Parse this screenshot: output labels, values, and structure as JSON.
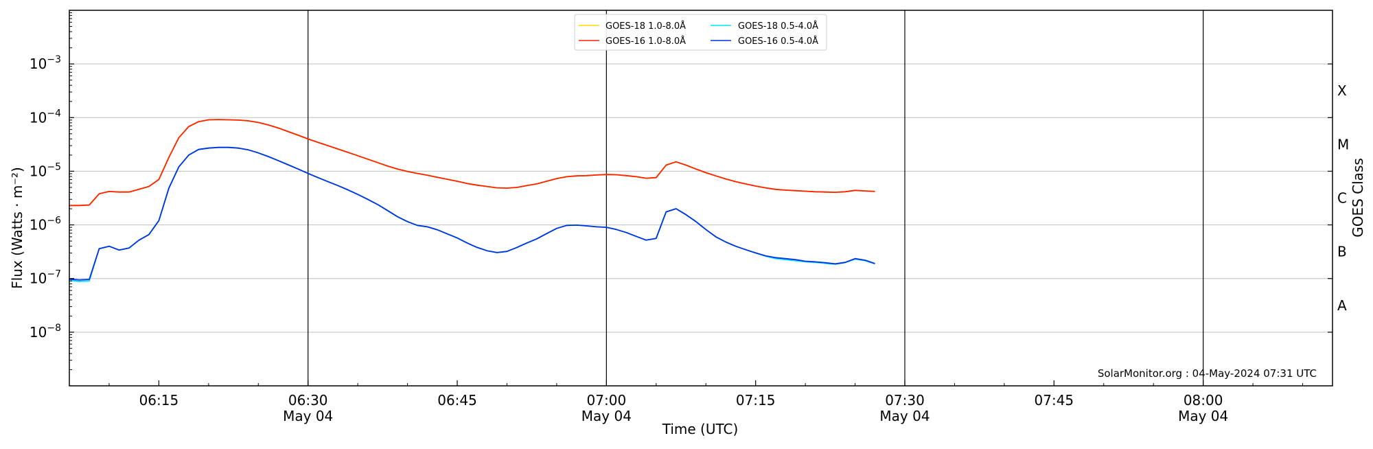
{
  "chart_data": {
    "type": "line",
    "title": "",
    "xlabel": "Time (UTC)",
    "ylabel": "Flux (Watts · m⁻²)",
    "right_label": "GOES Class",
    "credit": "SolarMonitor.org : 04-May-2024 07:31 UTC",
    "y_scale": "log",
    "ylim_exponents": [
      -9,
      -2
    ],
    "y_ticks": [
      {
        "exp": -8,
        "base": "10",
        "sup": "−8"
      },
      {
        "exp": -7,
        "base": "10",
        "sup": "−7"
      },
      {
        "exp": -6,
        "base": "10",
        "sup": "−6"
      },
      {
        "exp": -5,
        "base": "10",
        "sup": "−5"
      },
      {
        "exp": -4,
        "base": "10",
        "sup": "−4"
      },
      {
        "exp": -3,
        "base": "10",
        "sup": "−3"
      }
    ],
    "xlim": [
      "06:06",
      "08:13"
    ],
    "x_ticks": [
      {
        "time": "06:15",
        "date": ""
      },
      {
        "time": "06:30",
        "date": "May 04"
      },
      {
        "time": "06:45",
        "date": ""
      },
      {
        "time": "07:00",
        "date": "May 04"
      },
      {
        "time": "07:15",
        "date": ""
      },
      {
        "time": "07:30",
        "date": "May 04"
      },
      {
        "time": "07:45",
        "date": ""
      },
      {
        "time": "08:00",
        "date": "May 04"
      }
    ],
    "vertical_lines": [
      "06:30",
      "07:00",
      "07:30",
      "08:00"
    ],
    "goes_classes": [
      {
        "label": "A",
        "exp": -7.5
      },
      {
        "label": "B",
        "exp": -6.5
      },
      {
        "label": "C",
        "exp": -5.5
      },
      {
        "label": "M",
        "exp": -4.5
      },
      {
        "label": "X",
        "exp": -3.5
      }
    ],
    "grid": true,
    "legend_position": "top-center",
    "x": [
      "06:06",
      "06:07",
      "06:08",
      "06:09",
      "06:10",
      "06:11",
      "06:12",
      "06:13",
      "06:14",
      "06:15",
      "06:16",
      "06:17",
      "06:18",
      "06:19",
      "06:20",
      "06:21",
      "06:22",
      "06:23",
      "06:24",
      "06:25",
      "06:26",
      "06:27",
      "06:28",
      "06:29",
      "06:30",
      "06:31",
      "06:32",
      "06:33",
      "06:34",
      "06:35",
      "06:36",
      "06:37",
      "06:38",
      "06:39",
      "06:40",
      "06:41",
      "06:42",
      "06:43",
      "06:44",
      "06:45",
      "06:46",
      "06:47",
      "06:48",
      "06:49",
      "06:50",
      "06:51",
      "06:52",
      "06:53",
      "06:54",
      "06:55",
      "06:56",
      "06:57",
      "06:58",
      "06:59",
      "07:00",
      "07:01",
      "07:02",
      "07:03",
      "07:04",
      "07:05",
      "07:06",
      "07:07",
      "07:08",
      "07:09",
      "07:10",
      "07:11",
      "07:12",
      "07:13",
      "07:14",
      "07:15",
      "07:16",
      "07:17",
      "07:18",
      "07:19",
      "07:20",
      "07:21",
      "07:22",
      "07:23",
      "07:24",
      "07:25",
      "07:26",
      "07:27"
    ],
    "series": [
      {
        "name": "GOES-18 1.0-8.0Å",
        "color": "#ffd700",
        "values": [
          2.3e-06,
          2.3e-06,
          2.35e-06,
          3.8e-06,
          4.2e-06,
          4.1e-06,
          4.1e-06,
          4.6e-06,
          5.2e-06,
          7e-06,
          1.8e-05,
          4.2e-05,
          6.8e-05,
          8.4e-05,
          9.1e-05,
          9.2e-05,
          9.1e-05,
          9e-05,
          8.7e-05,
          8.1e-05,
          7.3e-05,
          6.4e-05,
          5.5e-05,
          4.7e-05,
          4e-05,
          3.45e-05,
          3e-05,
          2.6e-05,
          2.25e-05,
          1.95e-05,
          1.68e-05,
          1.45e-05,
          1.25e-05,
          1.1e-05,
          9.9e-06,
          9.1e-06,
          8.4e-06,
          7.7e-06,
          7.1e-06,
          6.5e-06,
          5.9e-06,
          5.5e-06,
          5.2e-06,
          4.9e-06,
          4.85e-06,
          5e-06,
          5.4e-06,
          5.8e-06,
          6.5e-06,
          7.3e-06,
          7.9e-06,
          8.2e-06,
          8.3e-06,
          8.5e-06,
          8.7e-06,
          8.6e-06,
          8.3e-06,
          7.9e-06,
          7.4e-06,
          7.6e-06,
          1.3e-05,
          1.5e-05,
          1.3e-05,
          1.1e-05,
          9.4e-06,
          8.2e-06,
          7.2e-06,
          6.4e-06,
          5.8e-06,
          5.3e-06,
          4.9e-06,
          4.6e-06,
          4.45e-06,
          4.35e-06,
          4.25e-06,
          4.15e-06,
          4.1e-06,
          4.05e-06,
          4.15e-06,
          4.4e-06,
          4.3e-06,
          4.2e-06
        ]
      },
      {
        "name": "GOES-16 1.0-8.0Å",
        "color": "#ff2000",
        "values": [
          2.3e-06,
          2.3e-06,
          2.35e-06,
          3.8e-06,
          4.2e-06,
          4.1e-06,
          4.1e-06,
          4.6e-06,
          5.2e-06,
          7e-06,
          1.8e-05,
          4.2e-05,
          6.8e-05,
          8.4e-05,
          9.1e-05,
          9.2e-05,
          9.1e-05,
          9e-05,
          8.7e-05,
          8.1e-05,
          7.3e-05,
          6.4e-05,
          5.5e-05,
          4.7e-05,
          4e-05,
          3.45e-05,
          3e-05,
          2.6e-05,
          2.25e-05,
          1.95e-05,
          1.68e-05,
          1.45e-05,
          1.25e-05,
          1.1e-05,
          9.9e-06,
          9.1e-06,
          8.4e-06,
          7.7e-06,
          7.1e-06,
          6.5e-06,
          5.9e-06,
          5.5e-06,
          5.2e-06,
          4.9e-06,
          4.85e-06,
          5e-06,
          5.4e-06,
          5.8e-06,
          6.5e-06,
          7.3e-06,
          7.9e-06,
          8.2e-06,
          8.3e-06,
          8.5e-06,
          8.7e-06,
          8.6e-06,
          8.3e-06,
          7.9e-06,
          7.4e-06,
          7.6e-06,
          1.3e-05,
          1.5e-05,
          1.3e-05,
          1.1e-05,
          9.4e-06,
          8.2e-06,
          7.2e-06,
          6.4e-06,
          5.8e-06,
          5.3e-06,
          4.9e-06,
          4.6e-06,
          4.45e-06,
          4.35e-06,
          4.25e-06,
          4.15e-06,
          4.1e-06,
          4.05e-06,
          4.15e-06,
          4.4e-06,
          4.3e-06,
          4.2e-06
        ]
      },
      {
        "name": "GOES-18 0.5-4.0Å",
        "color": "#00e5ff",
        "values": [
          9.2e-08,
          8.8e-08,
          9e-08,
          3.6e-07,
          4e-07,
          3.4e-07,
          3.7e-07,
          5.2e-07,
          6.6e-07,
          1.2e-06,
          4.8e-06,
          1.2e-05,
          2e-05,
          2.55e-05,
          2.7e-05,
          2.78e-05,
          2.78e-05,
          2.7e-05,
          2.5e-05,
          2.2e-05,
          1.88e-05,
          1.58e-05,
          1.32e-05,
          1.1e-05,
          9.1e-06,
          7.6e-06,
          6.4e-06,
          5.4e-06,
          4.5e-06,
          3.7e-06,
          3e-06,
          2.4e-06,
          1.85e-06,
          1.42e-06,
          1.15e-06,
          9.8e-07,
          9.2e-07,
          8.1e-07,
          6.8e-07,
          5.7e-07,
          4.6e-07,
          3.8e-07,
          3.3e-07,
          3.05e-07,
          3.2e-07,
          3.8e-07,
          4.6e-07,
          5.5e-07,
          6.9e-07,
          8.6e-07,
          9.8e-07,
          9.9e-07,
          9.6e-07,
          9.2e-07,
          9e-07,
          8.2e-07,
          7.2e-07,
          6.1e-07,
          5.2e-07,
          5.6e-07,
          1.75e-06,
          2e-06,
          1.55e-06,
          1.15e-06,
          8.2e-07,
          6e-07,
          4.8e-07,
          4e-07,
          3.45e-07,
          3e-07,
          2.6e-07,
          2.35e-07,
          2.25e-07,
          2.15e-07,
          2.05e-07,
          2e-07,
          1.92e-07,
          1.85e-07,
          1.98e-07,
          2.3e-07,
          2.15e-07,
          1.88e-07
        ]
      },
      {
        "name": "GOES-16 0.5-4.0Å",
        "color": "#0030e0",
        "values": [
          9.7e-08,
          9.4e-08,
          9.6e-08,
          3.6e-07,
          4e-07,
          3.4e-07,
          3.7e-07,
          5.2e-07,
          6.6e-07,
          1.2e-06,
          4.8e-06,
          1.2e-05,
          2e-05,
          2.55e-05,
          2.7e-05,
          2.78e-05,
          2.78e-05,
          2.7e-05,
          2.5e-05,
          2.2e-05,
          1.88e-05,
          1.58e-05,
          1.32e-05,
          1.1e-05,
          9.1e-06,
          7.6e-06,
          6.4e-06,
          5.4e-06,
          4.5e-06,
          3.7e-06,
          3e-06,
          2.4e-06,
          1.85e-06,
          1.42e-06,
          1.15e-06,
          9.8e-07,
          9.2e-07,
          8.1e-07,
          6.8e-07,
          5.7e-07,
          4.6e-07,
          3.8e-07,
          3.3e-07,
          3.05e-07,
          3.2e-07,
          3.8e-07,
          4.6e-07,
          5.5e-07,
          6.9e-07,
          8.6e-07,
          9.8e-07,
          9.9e-07,
          9.6e-07,
          9.2e-07,
          9e-07,
          8.2e-07,
          7.2e-07,
          6.1e-07,
          5.2e-07,
          5.6e-07,
          1.75e-06,
          2e-06,
          1.55e-06,
          1.15e-06,
          8.2e-07,
          6e-07,
          4.8e-07,
          4e-07,
          3.45e-07,
          3e-07,
          2.65e-07,
          2.45e-07,
          2.35e-07,
          2.25e-07,
          2.1e-07,
          2.05e-07,
          1.97e-07,
          1.88e-07,
          2e-07,
          2.35e-07,
          2.2e-07,
          1.9e-07
        ]
      }
    ]
  }
}
